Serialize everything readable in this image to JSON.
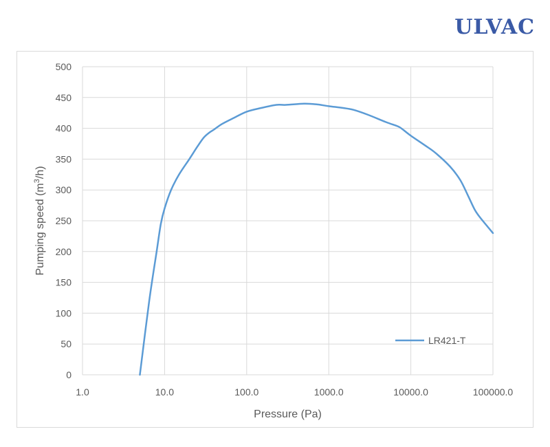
{
  "logo": {
    "text": "ULVAC",
    "color": "#3a5aa6"
  },
  "chart_data": {
    "type": "line",
    "title": "",
    "xlabel": "Pressure (Pa)",
    "ylabel_main": "Pumping speed (m",
    "ylabel_sup": "3",
    "ylabel_tail": "/h)",
    "x_scale": "log",
    "xlim": [
      1,
      100000
    ],
    "ylim": [
      0,
      500
    ],
    "x_ticks": [
      1,
      10,
      100,
      1000,
      10000,
      100000
    ],
    "x_tick_labels": [
      "1.0",
      "10.0",
      "100.0",
      "1000.0",
      "10000.0",
      "100000.0"
    ],
    "y_ticks": [
      0,
      50,
      100,
      150,
      200,
      250,
      300,
      350,
      400,
      450,
      500
    ],
    "y_tick_labels": [
      "0",
      "50",
      "100",
      "150",
      "200",
      "250",
      "300",
      "350",
      "400",
      "450",
      "500"
    ],
    "grid": true,
    "legend_position": "bottom-right",
    "series": [
      {
        "name": "LR421-T",
        "color": "#5b9bd5",
        "x": [
          5,
          6.5,
          8,
          9,
          10,
          12,
          15,
          20,
          25,
          30,
          35,
          40,
          50,
          70,
          100,
          150,
          230,
          300,
          500,
          700,
          1000,
          1500,
          2000,
          3000,
          5000,
          7000,
          8000,
          10000,
          15000,
          20000,
          30000,
          40000,
          50000,
          60000,
          70000,
          100000
        ],
        "y": [
          0,
          120,
          200,
          245,
          270,
          300,
          325,
          350,
          370,
          385,
          393,
          398,
          407,
          417,
          427,
          433,
          438,
          438,
          440,
          439,
          436,
          433,
          430,
          422,
          410,
          403,
          398,
          388,
          372,
          360,
          338,
          316,
          290,
          268,
          255,
          230
        ]
      }
    ]
  }
}
